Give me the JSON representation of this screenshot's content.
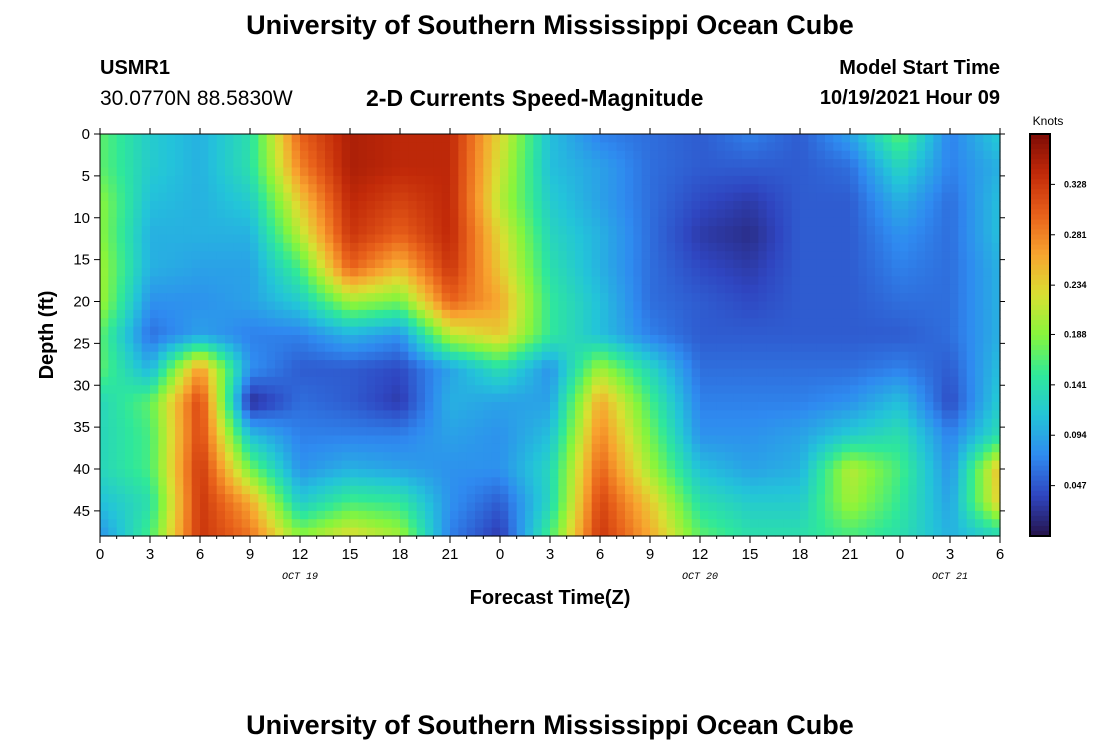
{
  "header": {
    "title": "University of Southern Mississippi Ocean Cube",
    "station": "USMR1",
    "coordinates": "30.0770N  88.5830W",
    "plot_title": "2-D Currents Speed-Magnitude",
    "model_start_label": "Model Start Time",
    "model_start_value": "10/19/2021 Hour 09"
  },
  "footer": {
    "title": "University of Southern Mississippi Ocean Cube"
  },
  "chart_data": {
    "type": "heatmap",
    "title": "2-D Currents Speed-Magnitude",
    "xlabel": "Forecast Time(Z)",
    "ylabel": "Depth (ft)",
    "x_tick_labels": [
      "0",
      "3",
      "6",
      "9",
      "12",
      "15",
      "18",
      "21",
      "0",
      "3",
      "6",
      "9",
      "12",
      "15",
      "18",
      "21",
      "0",
      "3",
      "6"
    ],
    "date_labels": [
      {
        "label": "OCT 19",
        "at_hours_from_start": 12
      },
      {
        "label": "OCT 20",
        "at_hours_from_start": 36
      },
      {
        "label": "OCT 21",
        "at_hours_from_start": 51
      }
    ],
    "x_range_hours": [
      0,
      54
    ],
    "y_ticks": [
      0,
      5,
      10,
      15,
      20,
      25,
      30,
      35,
      40,
      45
    ],
    "y_range_ft": [
      0,
      48
    ],
    "colorbar": {
      "unit": "Knots",
      "ticks": [
        "0.328",
        "0.281",
        "0.234",
        "0.188",
        "0.141",
        "0.094",
        "0.047"
      ],
      "range": [
        0,
        0.375
      ],
      "colors": [
        "#25134a",
        "#2f45c0",
        "#2f8af0",
        "#23c4d9",
        "#2fe89a",
        "#86f53c",
        "#d9e032",
        "#f8a42f",
        "#e8601a",
        "#c22a09",
        "#7d0b05"
      ]
    },
    "grid": {
      "hours": [
        0,
        3,
        6,
        9,
        12,
        15,
        18,
        21,
        24,
        27,
        30,
        33,
        36,
        39,
        42,
        45,
        48,
        51,
        54
      ],
      "depths_ft": [
        0,
        4,
        8,
        12,
        16,
        20,
        24,
        28,
        32,
        36,
        40,
        44,
        48
      ],
      "speed_knots": [
        [
          0.17,
          0.12,
          0.1,
          0.14,
          0.3,
          0.35,
          0.34,
          0.34,
          0.23,
          0.11,
          0.07,
          0.06,
          0.05,
          0.07,
          0.05,
          0.09,
          0.17,
          0.07,
          0.12
        ],
        [
          0.17,
          0.12,
          0.1,
          0.14,
          0.28,
          0.35,
          0.34,
          0.34,
          0.22,
          0.11,
          0.09,
          0.06,
          0.05,
          0.05,
          0.05,
          0.06,
          0.13,
          0.07,
          0.1
        ],
        [
          0.19,
          0.11,
          0.1,
          0.12,
          0.24,
          0.34,
          0.32,
          0.34,
          0.21,
          0.12,
          0.09,
          0.06,
          0.04,
          0.03,
          0.05,
          0.05,
          0.1,
          0.06,
          0.11
        ],
        [
          0.19,
          0.1,
          0.1,
          0.1,
          0.21,
          0.33,
          0.3,
          0.34,
          0.23,
          0.13,
          0.1,
          0.06,
          0.03,
          0.02,
          0.05,
          0.05,
          0.08,
          0.06,
          0.11
        ],
        [
          0.2,
          0.1,
          0.09,
          0.09,
          0.16,
          0.3,
          0.25,
          0.33,
          0.24,
          0.14,
          0.1,
          0.06,
          0.04,
          0.03,
          0.05,
          0.05,
          0.07,
          0.06,
          0.1
        ],
        [
          0.2,
          0.08,
          0.08,
          0.09,
          0.12,
          0.2,
          0.18,
          0.3,
          0.26,
          0.15,
          0.11,
          0.06,
          0.05,
          0.04,
          0.05,
          0.05,
          0.06,
          0.06,
          0.1
        ],
        [
          0.17,
          0.06,
          0.09,
          0.07,
          0.07,
          0.1,
          0.08,
          0.21,
          0.24,
          0.15,
          0.11,
          0.07,
          0.05,
          0.05,
          0.05,
          0.05,
          0.05,
          0.06,
          0.1
        ],
        [
          0.17,
          0.1,
          0.27,
          0.08,
          0.05,
          0.05,
          0.04,
          0.09,
          0.14,
          0.08,
          0.2,
          0.13,
          0.06,
          0.06,
          0.06,
          0.06,
          0.07,
          0.05,
          0.11
        ],
        [
          0.13,
          0.17,
          0.32,
          0.02,
          0.06,
          0.05,
          0.03,
          0.1,
          0.09,
          0.09,
          0.26,
          0.16,
          0.07,
          0.07,
          0.07,
          0.08,
          0.11,
          0.04,
          0.12
        ],
        [
          0.13,
          0.16,
          0.32,
          0.11,
          0.07,
          0.07,
          0.07,
          0.09,
          0.08,
          0.11,
          0.28,
          0.18,
          0.08,
          0.08,
          0.09,
          0.12,
          0.14,
          0.07,
          0.14
        ],
        [
          0.13,
          0.16,
          0.33,
          0.18,
          0.08,
          0.1,
          0.09,
          0.08,
          0.08,
          0.13,
          0.3,
          0.2,
          0.11,
          0.09,
          0.1,
          0.21,
          0.16,
          0.08,
          0.25
        ],
        [
          0.11,
          0.14,
          0.33,
          0.26,
          0.12,
          0.16,
          0.15,
          0.08,
          0.05,
          0.13,
          0.32,
          0.24,
          0.14,
          0.12,
          0.12,
          0.2,
          0.15,
          0.09,
          0.24
        ],
        [
          0.08,
          0.16,
          0.33,
          0.29,
          0.19,
          0.23,
          0.2,
          0.07,
          0.03,
          0.16,
          0.33,
          0.26,
          0.17,
          0.14,
          0.14,
          0.16,
          0.14,
          0.1,
          0.13
        ]
      ]
    }
  }
}
